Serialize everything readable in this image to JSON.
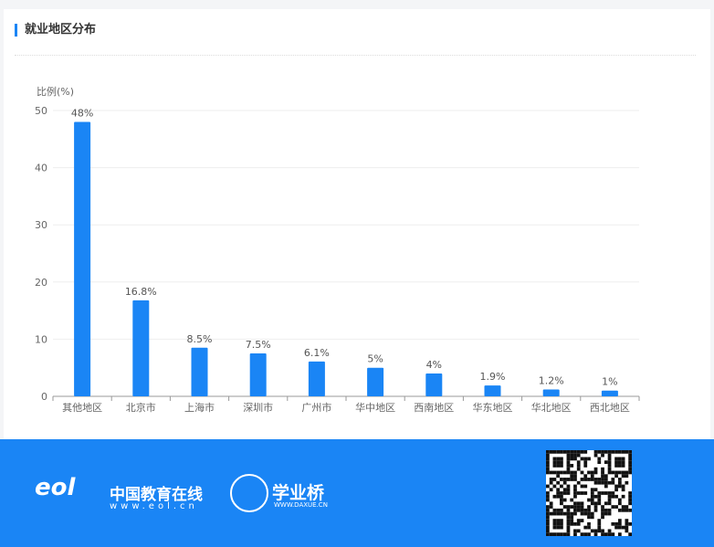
{
  "section": {
    "title": "就业地区分布"
  },
  "chart_data": {
    "type": "bar",
    "title": "",
    "ylabel": "比例(%)",
    "xlabel": "",
    "ylim": [
      0,
      50
    ],
    "yticks": [
      0,
      10,
      20,
      30,
      40,
      50
    ],
    "grid": true,
    "categories": [
      "其他地区",
      "北京市",
      "上海市",
      "深圳市",
      "广州市",
      "华中地区",
      "西南地区",
      "华东地区",
      "华北地区",
      "西北地区"
    ],
    "values": [
      48,
      16.8,
      8.5,
      7.5,
      6.1,
      5,
      4,
      1.9,
      1.2,
      1
    ],
    "labels": [
      "48%",
      "16.8%",
      "8.5%",
      "7.5%",
      "6.1%",
      "5%",
      "4%",
      "1.9%",
      "1.2%",
      "1%"
    ],
    "color": "#1a85f5"
  },
  "footer": {
    "eol_logo": "eol",
    "eol_name": "中国教育在线",
    "eol_url": "www.eol.cn",
    "xyq_name": "学业桥",
    "xyq_url": "WWW.DAXUE.CN",
    "background": "#1a85f5"
  }
}
